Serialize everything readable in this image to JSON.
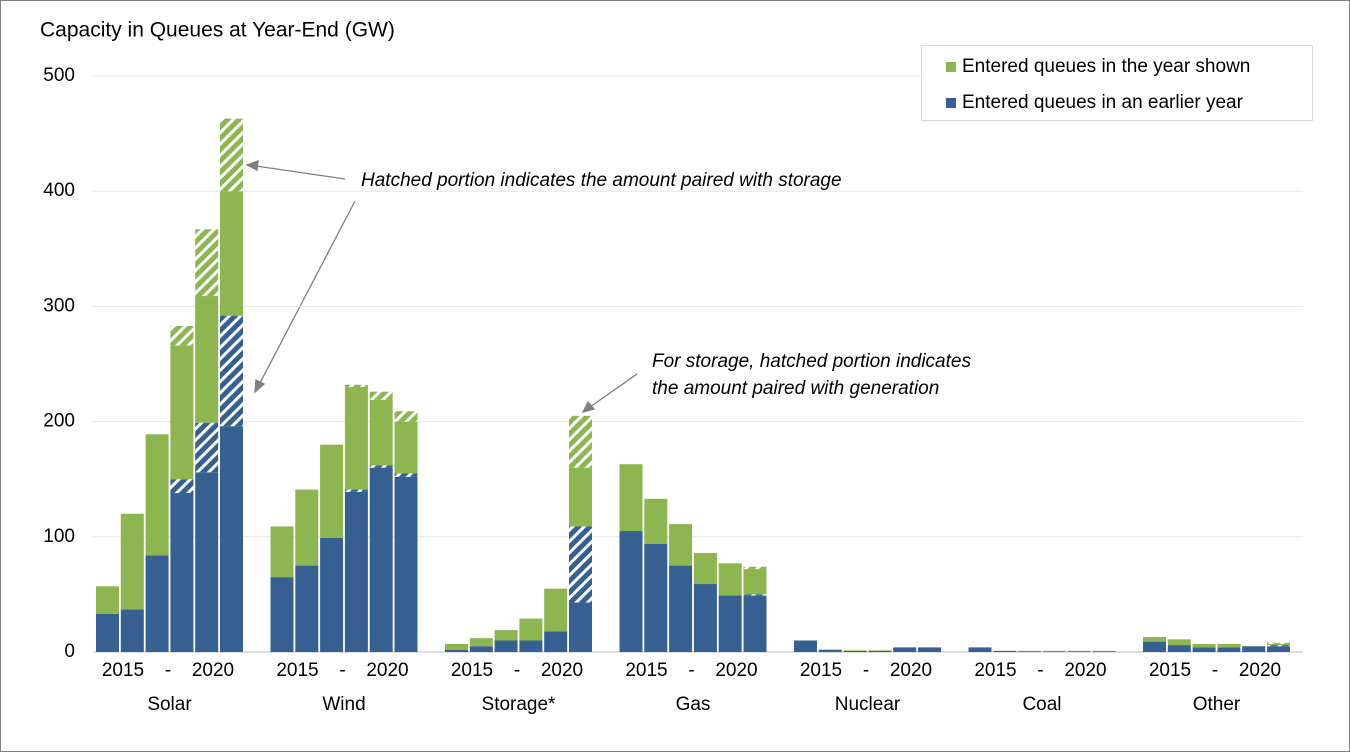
{
  "chart_data": {
    "type": "bar",
    "stacked": true,
    "title": "Capacity in Queues at Year-End (GW)",
    "categories": [
      "Solar",
      "Wind",
      "Storage*",
      "Gas",
      "Nuclear",
      "Coal",
      "Other"
    ],
    "year_range_labels": [
      "2015",
      "-",
      "2020"
    ],
    "ylim": [
      0,
      500
    ],
    "yticks": [
      0,
      100,
      200,
      300,
      400,
      500
    ],
    "grid": true,
    "legend": "top-right",
    "series": [
      {
        "name": "Entered queues in an earlier year",
        "color": "#376092",
        "values": [
          [
            33,
            37,
            84,
            138,
            156,
            196
          ],
          [
            65,
            75,
            99,
            139,
            160,
            152
          ],
          [
            2,
            5,
            10,
            10,
            18,
            43
          ],
          [
            105,
            94,
            75,
            59,
            49,
            49
          ],
          [
            10,
            2,
            1,
            1,
            4,
            4
          ],
          [
            4,
            1,
            0.5,
            0.5,
            0.5,
            0.5
          ],
          [
            9,
            6,
            4,
            4,
            5,
            5
          ]
        ],
        "hatched_values": [
          [
            0,
            0,
            0,
            12,
            43,
            96
          ],
          [
            0,
            0,
            0,
            2,
            2,
            3
          ],
          [
            0,
            0,
            0,
            0,
            0,
            66
          ],
          [
            0,
            0,
            0,
            0,
            0,
            1
          ],
          [
            0,
            0,
            0,
            0,
            0,
            0
          ],
          [
            0,
            0,
            0,
            0,
            0,
            0
          ],
          [
            0,
            0,
            0,
            0,
            0,
            1
          ]
        ]
      },
      {
        "name": "Entered queues in the year shown",
        "color": "#8db650",
        "values": [
          [
            24,
            83,
            105,
            116,
            110,
            108
          ],
          [
            44,
            66,
            81,
            89,
            57,
            45
          ],
          [
            5,
            7,
            9,
            19,
            37,
            51
          ],
          [
            58,
            39,
            36,
            27,
            28,
            22
          ],
          [
            0,
            0,
            0.5,
            0.5,
            0,
            0
          ],
          [
            0,
            0,
            0.5,
            0.5,
            0.5,
            0.5
          ],
          [
            4,
            5,
            3,
            3,
            0,
            1
          ]
        ],
        "hatched_values": [
          [
            0,
            0,
            0,
            17,
            58,
            63
          ],
          [
            0,
            0,
            0,
            2,
            7,
            9
          ],
          [
            0,
            0,
            0,
            0,
            0,
            45
          ],
          [
            0,
            0,
            0,
            0,
            0,
            2
          ],
          [
            0,
            0,
            0,
            0,
            0,
            0
          ],
          [
            0,
            0,
            0,
            0,
            0,
            0
          ],
          [
            0,
            0,
            0,
            0,
            0,
            1
          ]
        ]
      }
    ],
    "annotations": [
      {
        "lines": [
          "Hatched portion indicates the amount paired with storage"
        ]
      },
      {
        "lines": [
          "For storage, hatched portion indicates",
          "the amount paired with generation"
        ]
      }
    ]
  }
}
